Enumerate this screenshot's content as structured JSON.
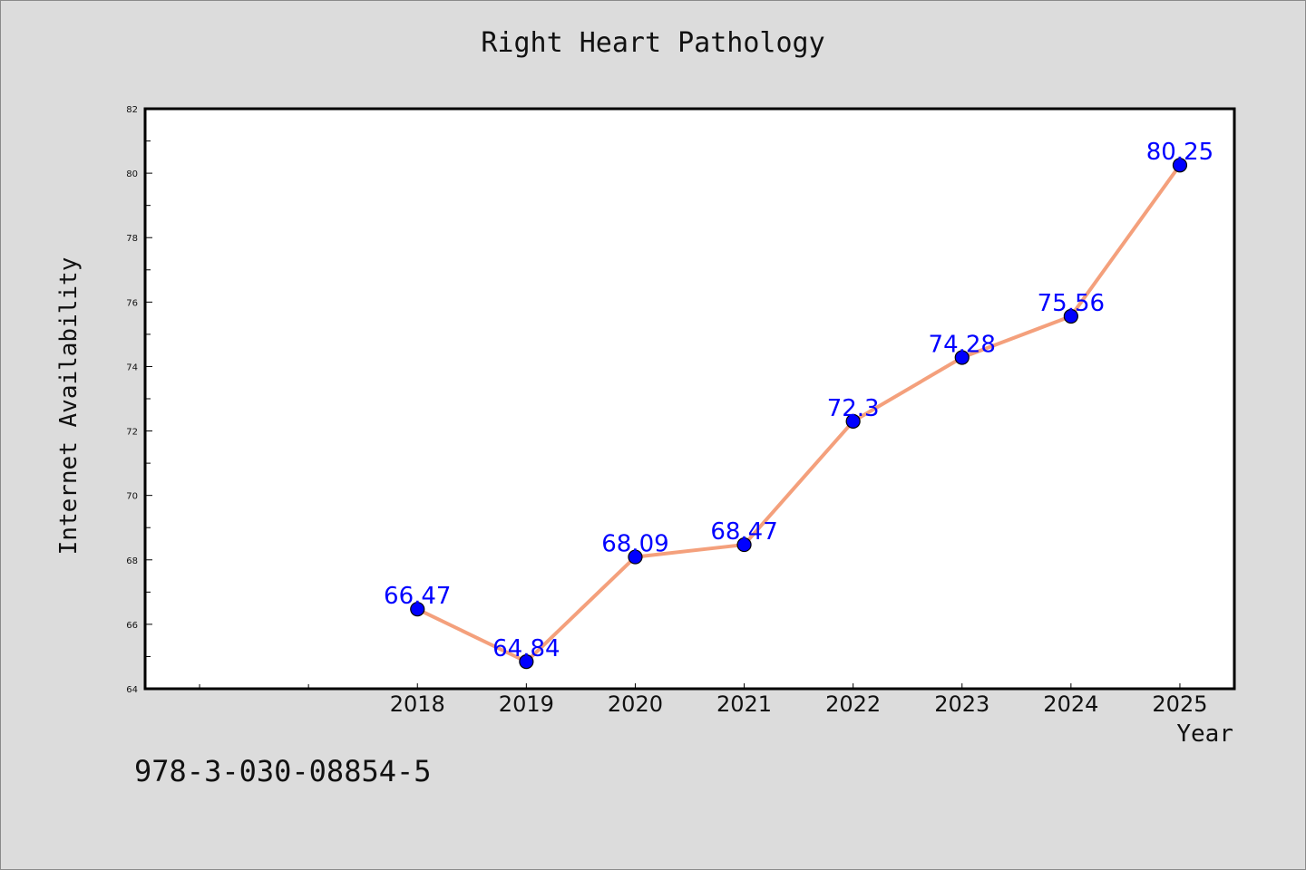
{
  "chart_data": {
    "type": "line",
    "title": "Right Heart Pathology",
    "xlabel": "Year",
    "ylabel": "Internet Availability",
    "x": [
      "2018",
      "2019",
      "2020",
      "2021",
      "2022",
      "2023",
      "2024",
      "2025"
    ],
    "series": [
      {
        "values": [
          66.47,
          64.84,
          68.09,
          68.47,
          72.3,
          74.28,
          75.56,
          80.25
        ],
        "data_labels": [
          "66.47",
          "64.84",
          "68.09",
          "68.47",
          "72.3",
          "74.28",
          "75.56",
          "80.25"
        ]
      }
    ],
    "ylim": [
      64,
      82
    ],
    "yticks": [
      "64",
      "66",
      "68",
      "70",
      "72",
      "74",
      "76",
      "78",
      "80",
      "82"
    ],
    "xrange": [
      2015.5,
      2025.5
    ],
    "grid": false,
    "line_color": "#f4a07c",
    "marker_color": "#0000ff",
    "label_color": "#0000ff"
  },
  "footer": {
    "isbn": "978-3-030-08854-5"
  }
}
